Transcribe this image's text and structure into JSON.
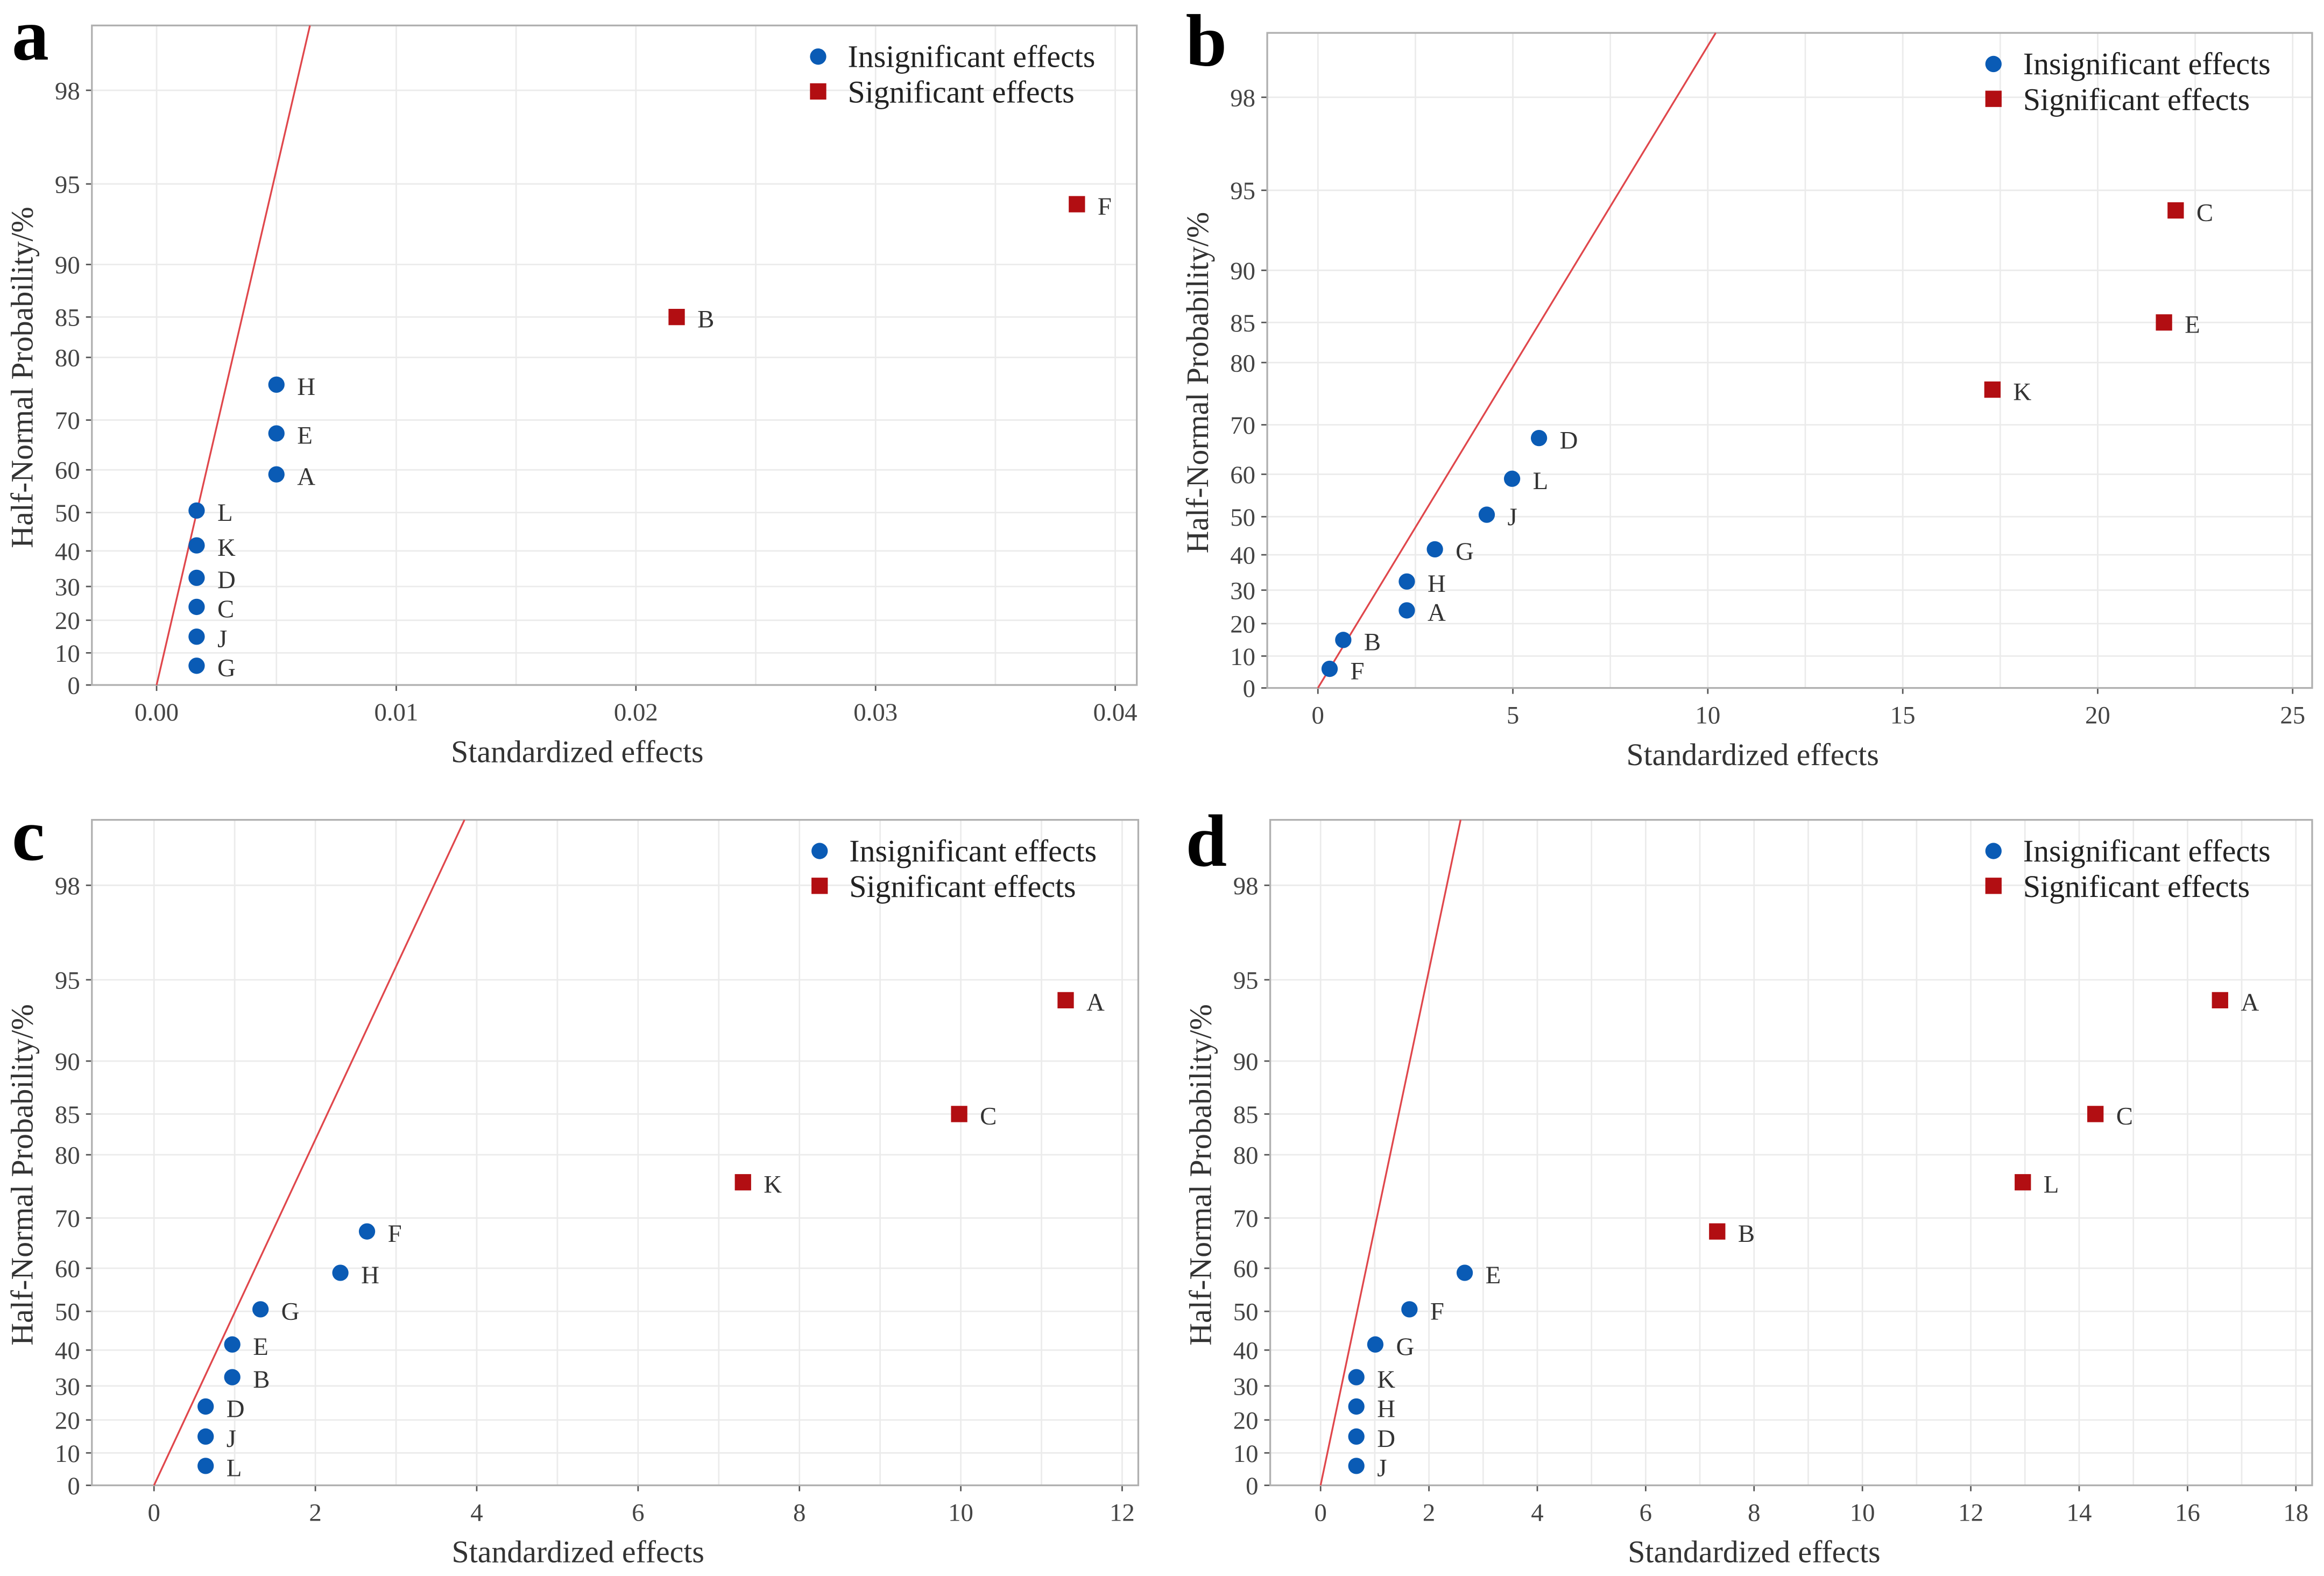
{
  "colors": {
    "insignificant": "#0a5bb5",
    "significant": "#b20e12",
    "line": "#e0474c",
    "grid": "#ebebeb",
    "frame": "#b0b0b0"
  },
  "legend": {
    "insignificant": "Insignificant effects",
    "significant": "Significant effects"
  },
  "chart_data": [
    {
      "panel": "a",
      "type": "scatter",
      "xlabel": "Standardized effects",
      "ylabel": "Half-Normal Probability/%",
      "xlim": [
        -0.0027,
        0.0409
      ],
      "xticks": [
        0,
        0.01,
        0.02,
        0.03,
        0.04
      ],
      "xtick_labels": [
        "0.00",
        "0.01",
        "0.02",
        "0.03",
        "0.04"
      ],
      "yticks": [
        0,
        10,
        20,
        30,
        40,
        50,
        60,
        70,
        80,
        85,
        90,
        95,
        98
      ],
      "reference_line": {
        "x": [
          0,
          0.00577
        ],
        "p": [
          0,
          98
        ]
      },
      "points": [
        {
          "label": "G",
          "x": 0.00167,
          "p": 6,
          "significant": false
        },
        {
          "label": "J",
          "x": 0.00167,
          "p": 15,
          "significant": false
        },
        {
          "label": "C",
          "x": 0.00167,
          "p": 24,
          "significant": false
        },
        {
          "label": "D",
          "x": 0.00167,
          "p": 32.5,
          "significant": false
        },
        {
          "label": "K",
          "x": 0.00167,
          "p": 41.5,
          "significant": false
        },
        {
          "label": "L",
          "x": 0.00167,
          "p": 50.5,
          "significant": false
        },
        {
          "label": "A",
          "x": 0.005,
          "p": 59,
          "significant": false
        },
        {
          "label": "E",
          "x": 0.005,
          "p": 67.5,
          "significant": false
        },
        {
          "label": "H",
          "x": 0.005,
          "p": 76,
          "significant": false
        },
        {
          "label": "B",
          "x": 0.0217,
          "p": 85,
          "significant": true
        },
        {
          "label": "F",
          "x": 0.0384,
          "p": 94,
          "significant": true
        }
      ]
    },
    {
      "panel": "b",
      "type": "scatter",
      "xlabel": "Standardized effects",
      "ylabel": "Half-Normal Probability/%",
      "xlim": [
        -1.3,
        25.5
      ],
      "xticks": [
        0,
        5,
        10,
        15,
        20,
        25
      ],
      "xtick_labels": [
        "0",
        "5",
        "10",
        "15",
        "20",
        "25"
      ],
      "yticks": [
        0,
        10,
        20,
        30,
        40,
        50,
        60,
        70,
        80,
        85,
        90,
        95,
        98
      ],
      "reference_line": {
        "x": [
          0,
          9.2
        ],
        "p": [
          0,
          98
        ]
      },
      "points": [
        {
          "label": "F",
          "x": 0.3,
          "p": 6,
          "significant": false
        },
        {
          "label": "B",
          "x": 0.65,
          "p": 15,
          "significant": false
        },
        {
          "label": "A",
          "x": 2.28,
          "p": 24,
          "significant": false
        },
        {
          "label": "H",
          "x": 2.28,
          "p": 32.5,
          "significant": false
        },
        {
          "label": "G",
          "x": 3.0,
          "p": 41.5,
          "significant": false
        },
        {
          "label": "J",
          "x": 4.33,
          "p": 50.5,
          "significant": false
        },
        {
          "label": "L",
          "x": 4.98,
          "p": 59,
          "significant": false
        },
        {
          "label": "D",
          "x": 5.67,
          "p": 67.5,
          "significant": false
        },
        {
          "label": "K",
          "x": 17.3,
          "p": 76,
          "significant": true
        },
        {
          "label": "E",
          "x": 21.7,
          "p": 85,
          "significant": true
        },
        {
          "label": "C",
          "x": 22.0,
          "p": 94,
          "significant": true
        }
      ]
    },
    {
      "panel": "c",
      "type": "scatter",
      "xlabel": "Standardized effects",
      "ylabel": "Half-Normal Probability/%",
      "xlim": [
        -0.77,
        12.2
      ],
      "xticks": [
        0,
        2,
        4,
        6,
        8,
        10,
        12
      ],
      "xtick_labels": [
        "0",
        "2",
        "4",
        "6",
        "8",
        "10",
        "12"
      ],
      "yticks": [
        0,
        10,
        20,
        30,
        40,
        50,
        60,
        70,
        80,
        85,
        90,
        95,
        98
      ],
      "reference_line": {
        "x": [
          0,
          3.47
        ],
        "p": [
          0,
          98
        ]
      },
      "points": [
        {
          "label": "L",
          "x": 0.64,
          "p": 6,
          "significant": false
        },
        {
          "label": "J",
          "x": 0.64,
          "p": 15,
          "significant": false
        },
        {
          "label": "D",
          "x": 0.64,
          "p": 24,
          "significant": false
        },
        {
          "label": "B",
          "x": 0.97,
          "p": 32.5,
          "significant": false
        },
        {
          "label": "E",
          "x": 0.97,
          "p": 41.5,
          "significant": false
        },
        {
          "label": "G",
          "x": 1.32,
          "p": 50.5,
          "significant": false
        },
        {
          "label": "H",
          "x": 2.31,
          "p": 59,
          "significant": false
        },
        {
          "label": "F",
          "x": 2.64,
          "p": 67.5,
          "significant": false
        },
        {
          "label": "K",
          "x": 7.3,
          "p": 76,
          "significant": true
        },
        {
          "label": "C",
          "x": 9.98,
          "p": 85,
          "significant": true
        },
        {
          "label": "A",
          "x": 11.3,
          "p": 94,
          "significant": true
        }
      ]
    },
    {
      "panel": "d",
      "type": "scatter",
      "xlabel": "Standardized effects",
      "ylabel": "Half-Normal Probability/%",
      "xlim": [
        -0.93,
        18.3
      ],
      "xticks": [
        0,
        2,
        4,
        6,
        8,
        10,
        12,
        14,
        16,
        18
      ],
      "xtick_labels": [
        "0",
        "2",
        "4",
        "6",
        "8",
        "10",
        "12",
        "14",
        "16",
        "18"
      ],
      "yticks": [
        0,
        10,
        20,
        30,
        40,
        50,
        60,
        70,
        80,
        85,
        90,
        95,
        98
      ],
      "reference_line": {
        "x": [
          0,
          2.33
        ],
        "p": [
          0,
          98
        ]
      },
      "points": [
        {
          "label": "J",
          "x": 0.66,
          "p": 6,
          "significant": false
        },
        {
          "label": "D",
          "x": 0.66,
          "p": 15,
          "significant": false
        },
        {
          "label": "H",
          "x": 0.66,
          "p": 24,
          "significant": false
        },
        {
          "label": "K",
          "x": 0.66,
          "p": 32.5,
          "significant": false
        },
        {
          "label": "G",
          "x": 1.01,
          "p": 41.5,
          "significant": false
        },
        {
          "label": "F",
          "x": 1.64,
          "p": 50.5,
          "significant": false
        },
        {
          "label": "E",
          "x": 2.66,
          "p": 59,
          "significant": false
        },
        {
          "label": "B",
          "x": 7.32,
          "p": 67.5,
          "significant": true
        },
        {
          "label": "L",
          "x": 12.96,
          "p": 76,
          "significant": true
        },
        {
          "label": "C",
          "x": 14.3,
          "p": 85,
          "significant": true
        },
        {
          "label": "A",
          "x": 16.6,
          "p": 94,
          "significant": true
        }
      ]
    }
  ]
}
